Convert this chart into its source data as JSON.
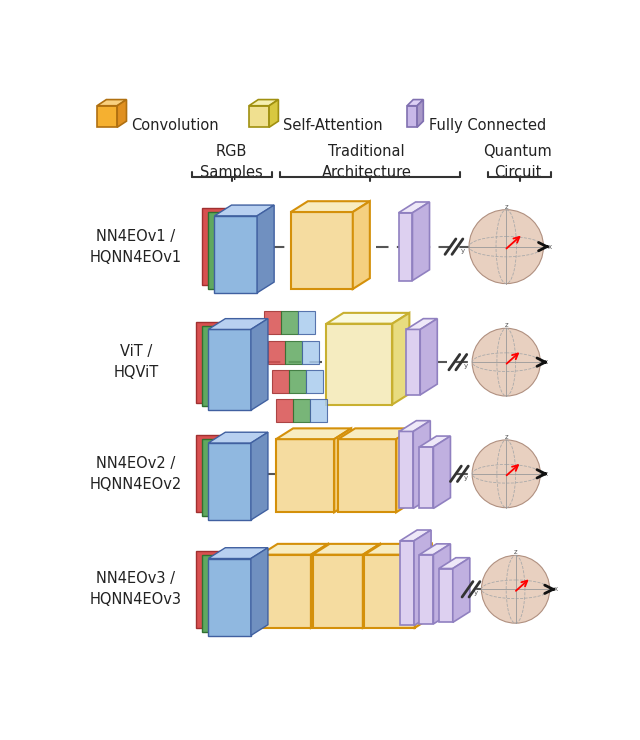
{
  "background": "#ffffff",
  "text_color": "#222222",
  "font_size": 10.5,
  "row_labels": [
    "NN4EOv1 /\nHQNN4EOv1",
    "ViT /\nHQViT",
    "NN4EOv2 /\nHQNN4EOv2",
    "NN4EOv3 /\nHQNN4EOv3"
  ],
  "conv_face": "#F5DCA0",
  "conv_top": "#F8ECC0",
  "conv_side": "#F5D080",
  "conv_edge": "#D4900A",
  "sa_face": "#F5ECC0",
  "sa_top": "#FAFAE0",
  "sa_side": "#E8DC80",
  "sa_edge": "#C8B030",
  "fc_face": "#DDD0F0",
  "fc_top": "#EEE8F8",
  "fc_side": "#C0B0E0",
  "fc_edge": "#9080C0",
  "rgb_red_face": "#D85050",
  "rgb_red_edge": "#A03030",
  "rgb_green_face": "#60A860",
  "rgb_green_edge": "#307030",
  "rgb_blue_face": "#90B8E0",
  "rgb_blue_top": "#B8D0F0",
  "rgb_blue_side": "#7090C0",
  "rgb_blue_edge": "#4060A0",
  "sphere_fill": "#E8D0C0",
  "sphere_edge": "#B09080",
  "legend_conv_face": "#F5B030",
  "legend_conv_top": "#F8D080",
  "legend_conv_side": "#E09020",
  "legend_conv_edge": "#B07010",
  "legend_sa_face": "#F0E090",
  "legend_sa_top": "#F5EFB0",
  "legend_sa_side": "#D8C840",
  "legend_sa_edge": "#A09010",
  "legend_fc_face": "#C8B8E8",
  "legend_fc_top": "#DDD0F5",
  "legend_fc_side": "#A898C8",
  "legend_fc_edge": "#8070B0"
}
